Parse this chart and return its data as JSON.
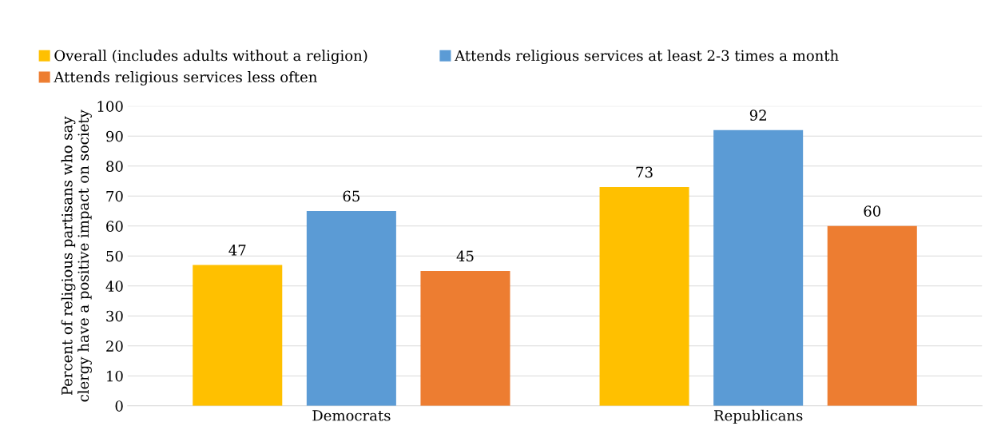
{
  "chart_data": {
    "type": "bar",
    "categories": [
      "Democrats",
      "Republicans"
    ],
    "ylabel": "Percent of religious partisans who say\nclergy have a positive impact on society",
    "series": [
      {
        "name": "Overall (includes adults without a religion)",
        "color": "#ffc000",
        "values": [
          47,
          73
        ]
      },
      {
        "name": "Attends religious services at least 2-3 times a month",
        "color": "#5b9bd5",
        "values": [
          65,
          92
        ]
      },
      {
        "name": "Attends religious services less often",
        "color": "#ed7d31",
        "values": [
          45,
          60
        ]
      }
    ],
    "ylim": [
      0,
      100
    ],
    "yticks": [
      0,
      10,
      20,
      30,
      40,
      50,
      60,
      70,
      80,
      90,
      100
    ],
    "grid": "y",
    "legend": "top",
    "data_labels": true
  }
}
